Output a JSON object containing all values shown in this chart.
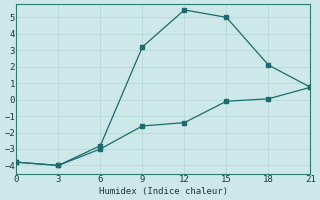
{
  "xlabel": "Humidex (Indice chaleur)",
  "background_color": "#cce8e8",
  "grid_color_major": "#b8d8d8",
  "grid_color_minor": "#d8ecec",
  "line_color": "#1e6b6b",
  "x_ticks": [
    0,
    3,
    6,
    9,
    12,
    15,
    18,
    21
  ],
  "y_ticks": [
    -4,
    -3,
    -2,
    -1,
    0,
    1,
    2,
    3,
    4,
    5
  ],
  "xlim": [
    0,
    21
  ],
  "ylim": [
    -4.5,
    5.8
  ],
  "line1_x": [
    0,
    3,
    6,
    9,
    12,
    15,
    18,
    21
  ],
  "line1_y": [
    -3.8,
    -4.0,
    -2.8,
    3.2,
    5.45,
    5.0,
    2.1,
    0.75
  ],
  "line2_x": [
    0,
    3,
    6,
    9,
    12,
    15,
    18,
    21
  ],
  "line2_y": [
    -3.8,
    -4.0,
    -3.0,
    -1.6,
    -1.4,
    -0.1,
    0.05,
    0.75
  ]
}
